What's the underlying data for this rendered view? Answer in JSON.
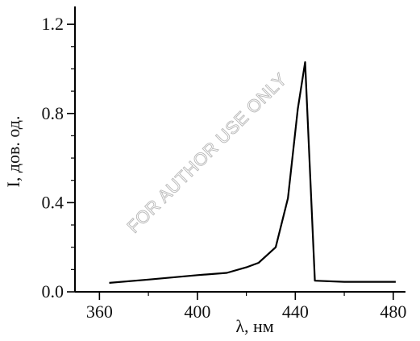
{
  "chart_data": {
    "type": "line",
    "title": "",
    "xlabel": "λ, нм",
    "ylabel": "I, дов. од.",
    "xlim": [
      350,
      485
    ],
    "ylim": [
      0,
      1.28
    ],
    "xticks": [
      360,
      400,
      440,
      480
    ],
    "yticks": [
      0.0,
      0.4,
      0.8,
      1.2
    ],
    "xtick_labels": [
      "360",
      "400",
      "440",
      "480"
    ],
    "ytick_labels": [
      "0.0",
      "0.4",
      "0.8",
      "1.2"
    ],
    "grid": false,
    "series": [
      {
        "x": [
          364,
          380,
          400,
          412,
          420,
          425,
          432,
          437,
          441,
          444,
          448,
          460,
          470,
          481
        ],
        "y": [
          0.04,
          0.055,
          0.075,
          0.085,
          0.11,
          0.13,
          0.2,
          0.42,
          0.82,
          1.03,
          0.05,
          0.045,
          0.045,
          0.045
        ],
        "color": "#000000"
      }
    ]
  },
  "watermark": "FOR AUTHOR USE ONLY"
}
